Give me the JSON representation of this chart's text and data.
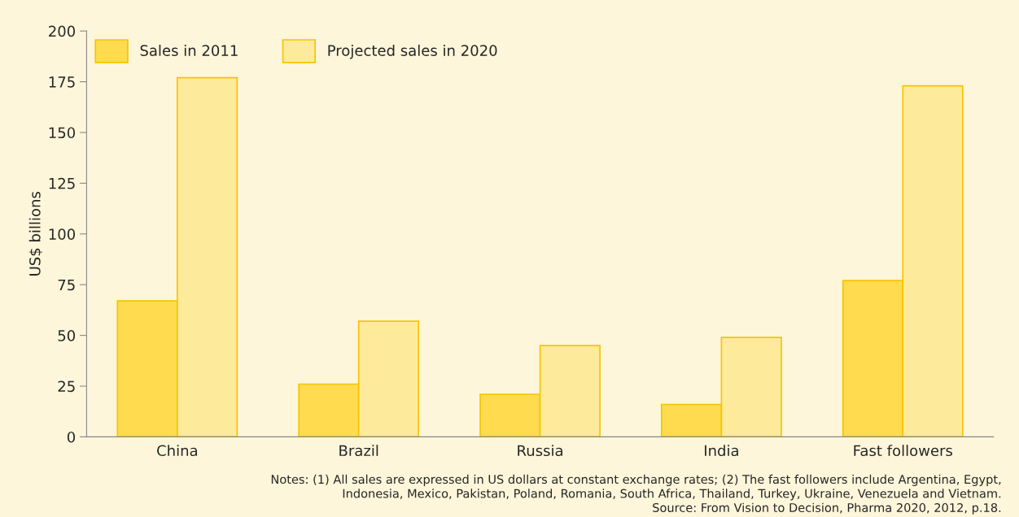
{
  "chart_data": {
    "type": "bar",
    "ylabel": "US$ billions",
    "categories": [
      "China",
      "Brazil",
      "Russia",
      "India",
      "Fast followers"
    ],
    "series": [
      {
        "name": "Sales in 2011",
        "color": "#fedb4f",
        "values": [
          67,
          26,
          21,
          16,
          77
        ]
      },
      {
        "name": "Projected sales in 2020",
        "color": "#feea9b",
        "values": [
          177,
          57,
          45,
          49,
          173
        ]
      }
    ],
    "ylim": [
      0,
      200
    ],
    "yticks": [
      0,
      25,
      50,
      75,
      100,
      125,
      150,
      175,
      200
    ],
    "grid": false,
    "legend": "top left",
    "annotations": [
      "Notes: (1) All sales are expressed in US dollars at constant exchange rates; (2) The fast followers include Argentina, Egypt,\nIndonesia, Mexico, Pakistan, Poland, Romania, South Africa, Thailand, Turkey, Ukraine, Venezuela and Vietnam.\nSource: From Vision to Decision, Pharma 2020, 2012, p.18."
    ]
  }
}
